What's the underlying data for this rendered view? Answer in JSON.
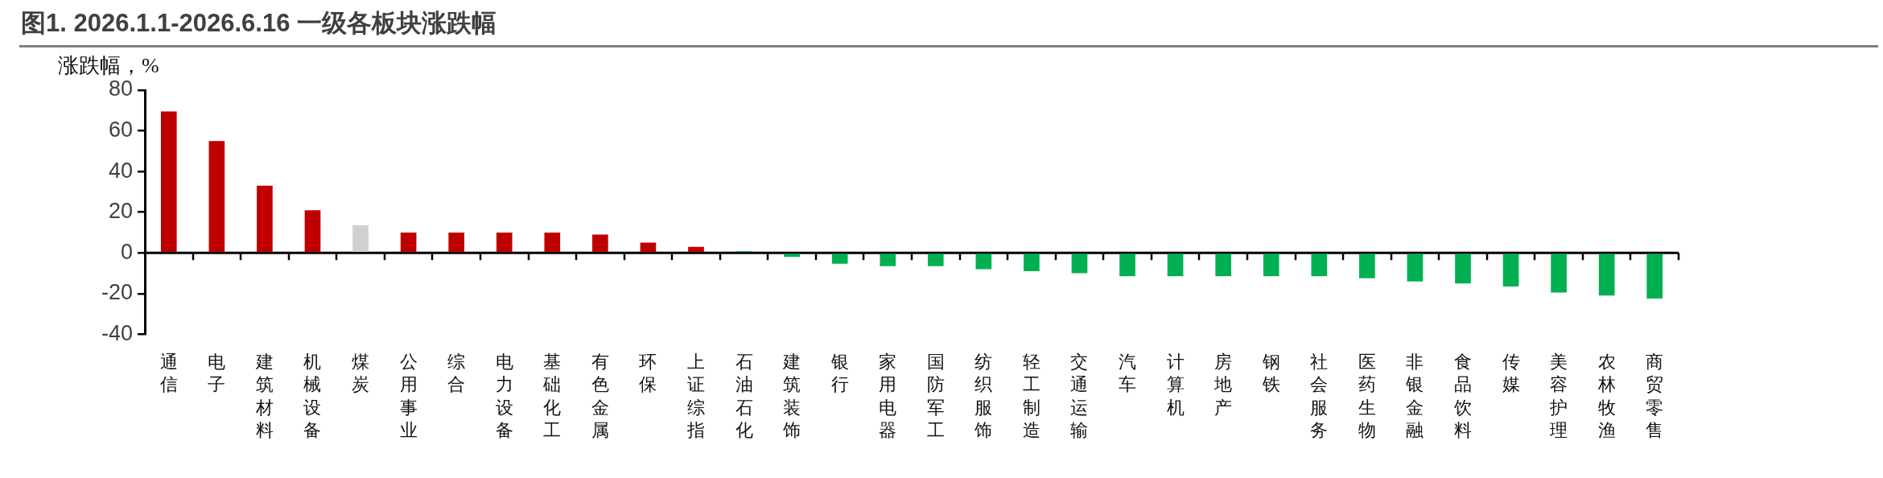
{
  "chart_data": {
    "type": "bar",
    "title": "图1. 2026.1.1-2026.6.16 一级各板块涨跌幅",
    "ylabel": "涨跌幅，%",
    "categories": [
      "通信",
      "电子",
      "建筑材料",
      "机械设备",
      "煤炭",
      "公用事业",
      "综合",
      "电力设备",
      "基础化工",
      "有色金属",
      "环保",
      "上证综指",
      "石油石化",
      "建筑装饰",
      "银行",
      "家用电器",
      "国防军工",
      "纺织服饰",
      "轻工制造",
      "交通运输",
      "汽车",
      "计算机",
      "房地产",
      "钢铁",
      "社会服务",
      "医药生物",
      "非银金融",
      "食品饮料",
      "传媒",
      "美容护理",
      "农林牧渔",
      "商贸零售"
    ],
    "values": [
      69.5,
      55,
      33,
      21,
      13.5,
      10,
      10,
      10,
      10,
      9,
      5,
      3,
      0.8,
      -2,
      -5.3,
      -6.5,
      -6.5,
      -8,
      -9,
      -10,
      -11.5,
      -11.5,
      -11.5,
      -11.5,
      -11.5,
      -12.5,
      -14,
      -15,
      -16.5,
      -19.5,
      -21,
      -22.5
    ],
    "colors": [
      "#c00000",
      "#c00000",
      "#c00000",
      "#c00000",
      "#d0d0d0",
      "#c00000",
      "#c00000",
      "#c00000",
      "#c00000",
      "#c00000",
      "#c00000",
      "#c00000",
      "#00b050",
      "#00b050",
      "#00b050",
      "#00b050",
      "#00b050",
      "#00b050",
      "#00b050",
      "#00b050",
      "#00b050",
      "#00b050",
      "#00b050",
      "#00b050",
      "#00b050",
      "#00b050",
      "#00b050",
      "#00b050",
      "#00b050",
      "#00b050",
      "#00b050",
      "#00b050"
    ],
    "ylim": [
      -40,
      80
    ],
    "yticks": [
      -40,
      -20,
      0,
      20,
      40,
      60,
      80
    ]
  }
}
